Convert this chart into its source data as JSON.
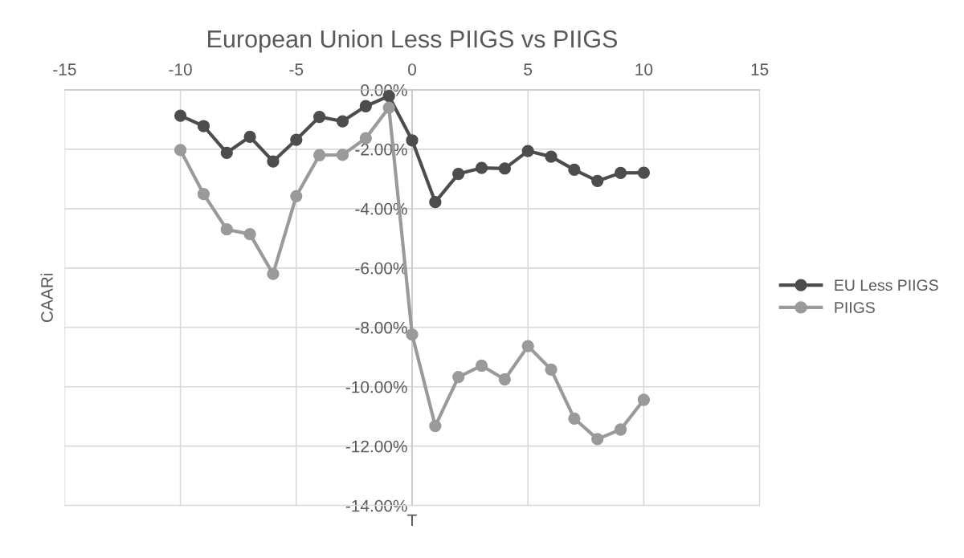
{
  "chart_data": {
    "type": "line",
    "title": "European Union Less PIIGS vs PIIGS",
    "xlabel": "T",
    "ylabel": "CAARi",
    "x": [
      -10,
      -9,
      -8,
      -7,
      -6,
      -5,
      -4,
      -3,
      -2,
      -1,
      0,
      1,
      2,
      3,
      4,
      5,
      6,
      7,
      8,
      9,
      10
    ],
    "series": [
      {
        "name": "EU Less PIIGS",
        "color": "#4d4d4d",
        "values": [
          -0.87,
          -1.22,
          -2.12,
          -1.58,
          -2.41,
          -1.68,
          -0.91,
          -1.06,
          -0.55,
          -0.21,
          -1.7,
          -3.78,
          -2.83,
          -2.63,
          -2.65,
          -2.06,
          -2.25,
          -2.69,
          -3.07,
          -2.8,
          -2.79
        ]
      },
      {
        "name": "PIIGS",
        "color": "#9a9a9a",
        "values": [
          -2.03,
          -3.51,
          -4.7,
          -4.86,
          -6.2,
          -3.58,
          -2.2,
          -2.19,
          -1.63,
          -0.6,
          -8.24,
          -11.32,
          -9.67,
          -9.29,
          -9.75,
          -8.63,
          -9.42,
          -11.07,
          -11.76,
          -11.44,
          -10.44
        ]
      }
    ],
    "xlim": [
      -15,
      15
    ],
    "xticks": [
      -15,
      -10,
      -5,
      0,
      5,
      10,
      15
    ],
    "ylim": [
      -14,
      0
    ],
    "yticks": [
      {
        "value": 0,
        "label": "0.00%"
      },
      {
        "value": -2,
        "label": "-2.00%"
      },
      {
        "value": -4,
        "label": "-4.00%"
      },
      {
        "value": -6,
        "label": "-6.00%"
      },
      {
        "value": -8,
        "label": "-8.00%"
      },
      {
        "value": -10,
        "label": "-10.00%"
      },
      {
        "value": -12,
        "label": "-12.00%"
      },
      {
        "value": -14,
        "label": "-14.00%"
      }
    ],
    "grid": true,
    "legend": "right",
    "marker": "circle",
    "line_style": "solid"
  }
}
